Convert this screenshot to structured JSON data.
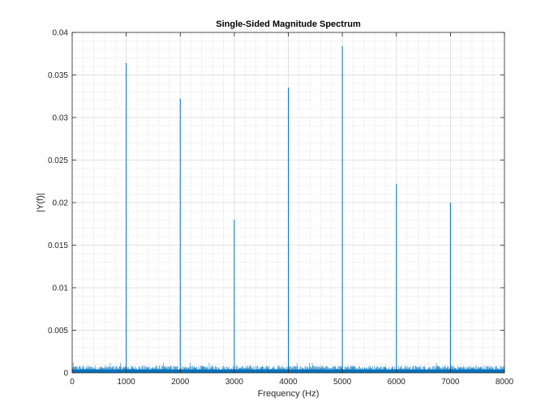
{
  "chart_data": {
    "type": "line",
    "title": "Single-Sided Magnitude Spectrum",
    "xlabel": "Frequency (Hz)",
    "ylabel": "|Y(f)|",
    "xlim": [
      0,
      8000
    ],
    "ylim": [
      0,
      0.04
    ],
    "x_ticks": [
      0,
      1000,
      2000,
      3000,
      4000,
      5000,
      6000,
      7000,
      8000
    ],
    "x_tick_labels": [
      "0",
      "1000",
      "2000",
      "3000",
      "4000",
      "5000",
      "6000",
      "7000",
      "8000"
    ],
    "y_ticks": [
      0,
      0.005,
      0.01,
      0.015,
      0.02,
      0.025,
      0.03,
      0.035,
      0.04
    ],
    "y_tick_labels": [
      "0",
      "0.005",
      "0.01",
      "0.015",
      "0.02",
      "0.025",
      "0.03",
      "0.035",
      "0.04"
    ],
    "grid": "on, major and minor",
    "noise_floor": {
      "typical": 0.0007,
      "max": 0.0012
    },
    "series": [
      {
        "color": "#0072bd",
        "peaks": [
          {
            "x": 1000,
            "y": 0.0364
          },
          {
            "x": 2000,
            "y": 0.0322
          },
          {
            "x": 3000,
            "y": 0.018
          },
          {
            "x": 4000,
            "y": 0.0335
          },
          {
            "x": 5000,
            "y": 0.0384
          },
          {
            "x": 6000,
            "y": 0.0222
          },
          {
            "x": 7000,
            "y": 0.02
          }
        ]
      }
    ]
  }
}
